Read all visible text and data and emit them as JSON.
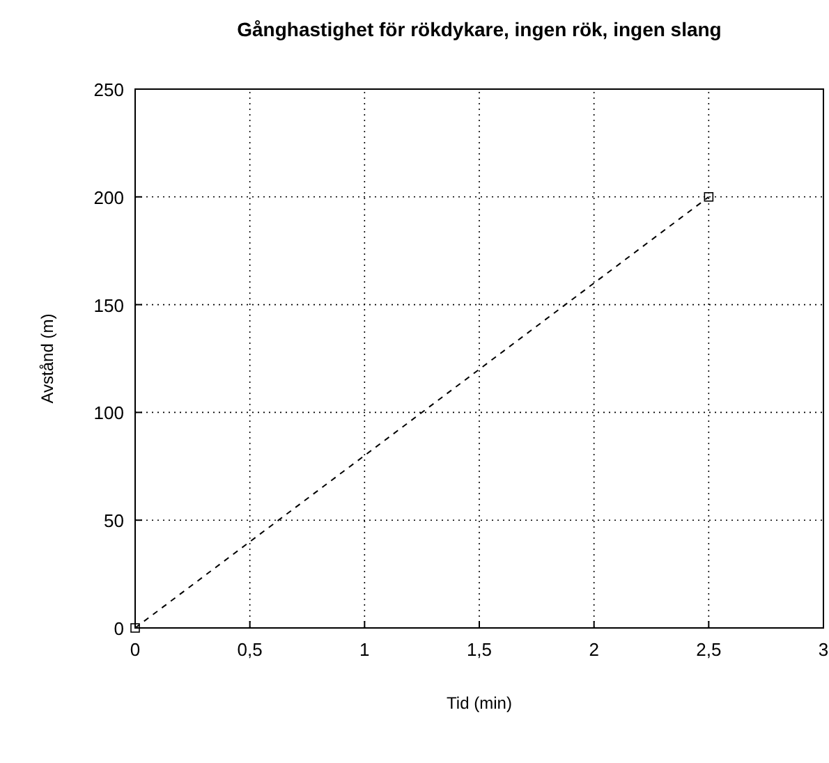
{
  "chart_data": {
    "type": "line",
    "title": "Gånghastighet för rökdykare, ingen rök, ingen slang",
    "xlabel": "Tid (min)",
    "ylabel": "Avstånd (m)",
    "x": [
      0,
      2.5
    ],
    "series": [
      {
        "color": "#000000",
        "values": [
          0,
          200
        ]
      }
    ],
    "xlim": [
      0,
      3
    ],
    "xticks": [
      0,
      {
        "value": 0.5,
        "label": "0,5"
      },
      1,
      {
        "value": 1.5,
        "label": "1,5"
      },
      2,
      {
        "value": 2.5,
        "label": "2,5"
      },
      3
    ],
    "ylim": [
      0,
      250
    ],
    "yticks": [
      0,
      50,
      100,
      150,
      200,
      250
    ],
    "grid": true,
    "marker": "square",
    "line_style": "dashed"
  }
}
